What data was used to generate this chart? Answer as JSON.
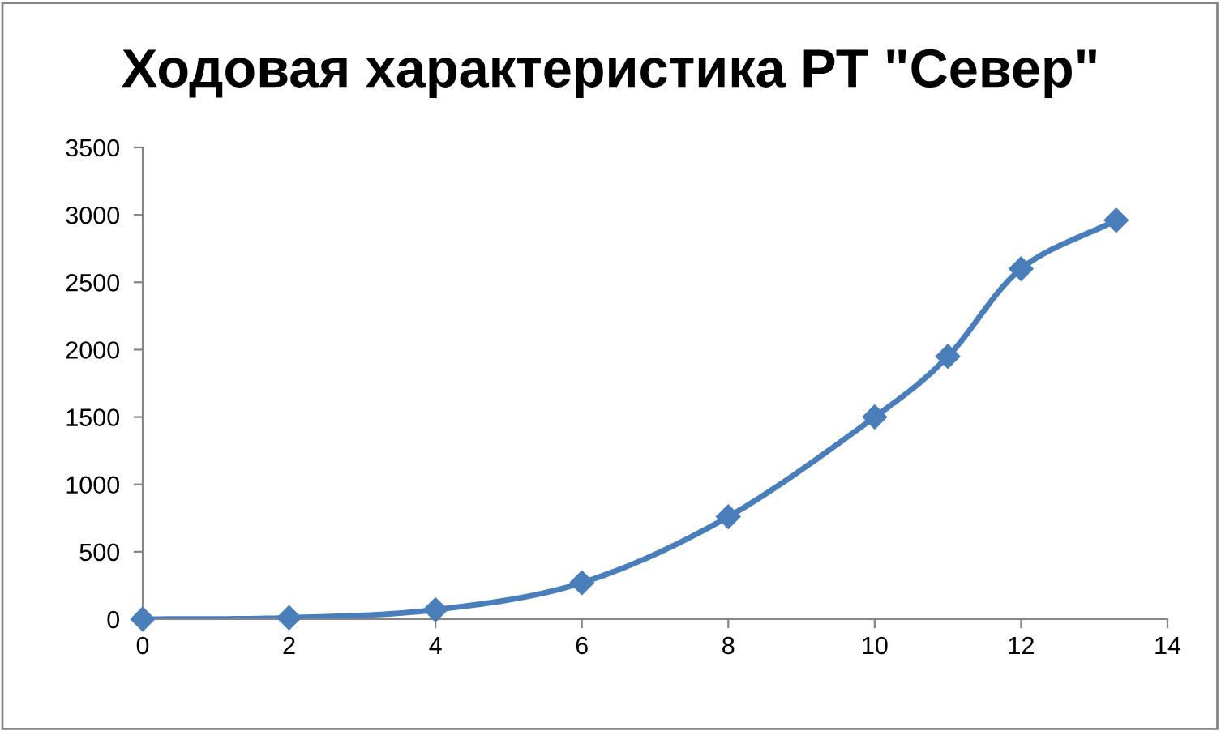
{
  "chart_data": {
    "type": "line",
    "title": "Ходовая характеристика РТ \"Север\"",
    "series": [
      {
        "color": "#4a7ebb",
        "x": [
          0,
          2,
          4,
          6,
          8,
          10,
          11,
          12,
          13.3
        ],
        "values": [
          0,
          10,
          70,
          270,
          760,
          1500,
          1950,
          2600,
          2960
        ]
      }
    ],
    "xlim": [
      0,
      14
    ],
    "xticks": [
      0,
      2,
      4,
      6,
      8,
      10,
      12,
      14
    ],
    "ylim": [
      0,
      3500
    ],
    "yticks": [
      0,
      500,
      1000,
      1500,
      2000,
      2500,
      3000,
      3500
    ],
    "marker": "diamond",
    "line_style": "solid",
    "grid": false
  }
}
